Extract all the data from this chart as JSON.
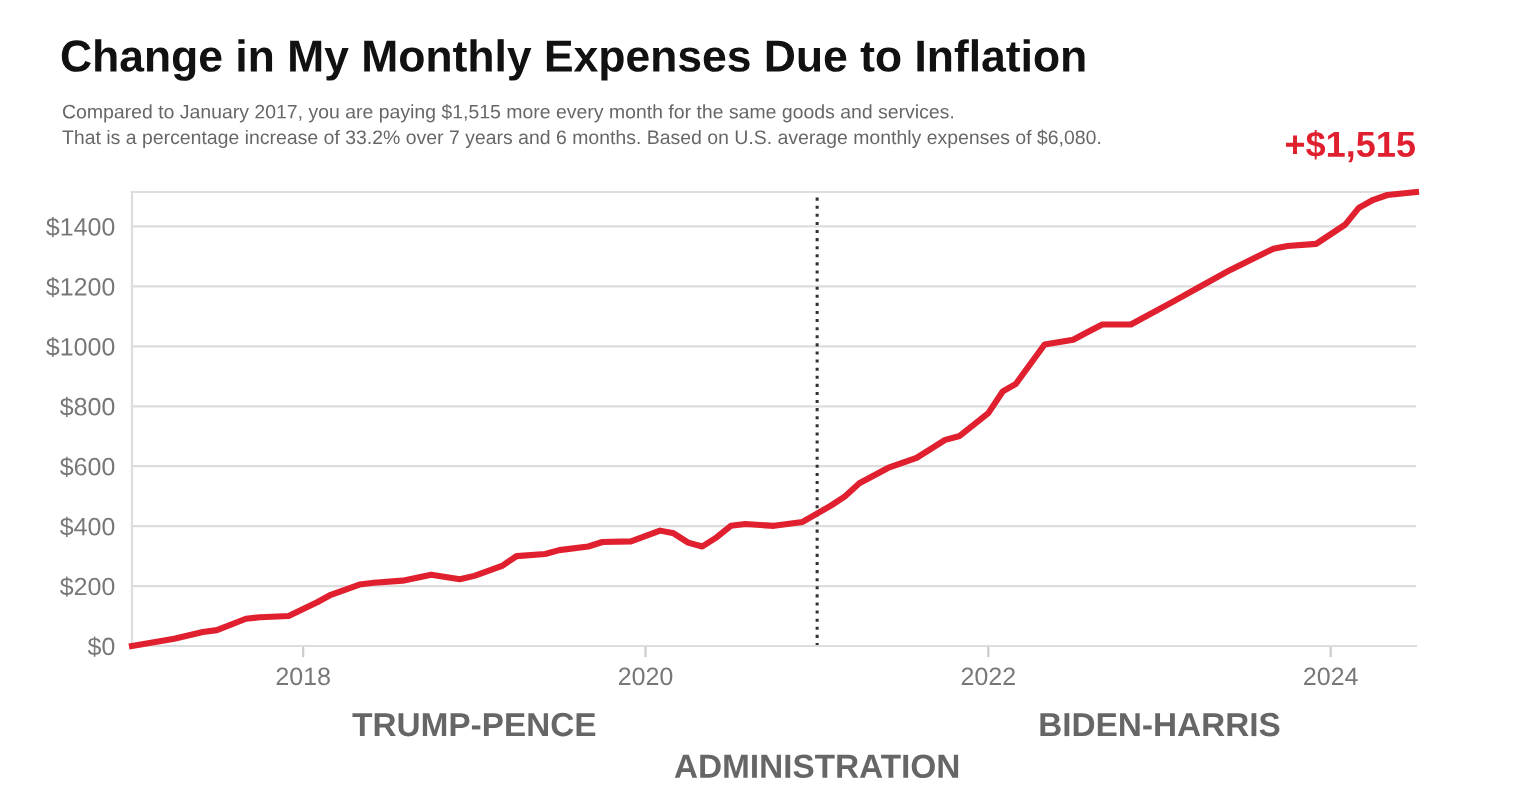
{
  "chart_data": {
    "type": "line",
    "title": "Change in My Monthly Expenses Due to Inflation",
    "subtitle": "Compared to January 2017, you are paying $1,515 more every month for the same goods and services.\nThat is a percentage increase of 33.2% over 7 years and 6 months. Based on U.S. average monthly expenses of $6,080.",
    "x": [
      "2017-01",
      "2017-04",
      "2017-06",
      "2017-07",
      "2017-09",
      "2017-10",
      "2017-12",
      "2018-02",
      "2018-03",
      "2018-05",
      "2018-06",
      "2018-08",
      "2018-10",
      "2018-12",
      "2019-01",
      "2019-03",
      "2019-04",
      "2019-06",
      "2019-07",
      "2019-09",
      "2019-10",
      "2019-12",
      "2020-02",
      "2020-03",
      "2020-04",
      "2020-05",
      "2020-06",
      "2020-07",
      "2020-08",
      "2020-10",
      "2020-12",
      "2021-02",
      "2021-03",
      "2021-04",
      "2021-06",
      "2021-08",
      "2021-10",
      "2021-11",
      "2022-01",
      "2022-02",
      "2022-03",
      "2022-05",
      "2022-07",
      "2022-08",
      "2022-09",
      "2022-11",
      "2023-02",
      "2023-04",
      "2023-06",
      "2023-09",
      "2023-10",
      "2023-12",
      "2024-02",
      "2024-03",
      "2024-04",
      "2024-05",
      "2024-07"
    ],
    "series": [
      {
        "color": "#e0202e",
        "values": [
          0,
          24,
          47,
          53,
          91,
          96,
          100,
          147,
          171,
          205,
          211,
          218,
          238,
          223,
          234,
          267,
          300,
          307,
          320,
          332,
          347,
          349,
          385,
          376,
          345,
          332,
          363,
          401,
          407,
          401,
          414,
          470,
          499,
          543,
          594,
          628,
          688,
          701,
          777,
          850,
          875,
          1006,
          1022,
          1048,
          1073,
          1073,
          1151,
          1202,
          1255,
          1326,
          1335,
          1342,
          1406,
          1462,
          1489,
          1505,
          1515
        ]
      }
    ],
    "xlim": [
      "2017-01",
      "2024-07"
    ],
    "xticks": [
      {
        "value": "2018",
        "label": "2018"
      },
      {
        "value": "2020",
        "label": "2020"
      },
      {
        "value": "2022",
        "label": "2022"
      },
      {
        "value": "2024",
        "label": "2024"
      }
    ],
    "ylim": [
      0,
      1515
    ],
    "yticks": [
      {
        "value": 0,
        "label": "$0"
      },
      {
        "value": 200,
        "label": "$200"
      },
      {
        "value": 400,
        "label": "$400"
      },
      {
        "value": 600,
        "label": "$600"
      },
      {
        "value": 800,
        "label": "$800"
      },
      {
        "value": 1000,
        "label": "$1000"
      },
      {
        "value": 1200,
        "label": "$1200"
      },
      {
        "value": 1400,
        "label": "$1400"
      }
    ],
    "grid": "y",
    "line_style": "solid",
    "ref_lines": [
      {
        "axis": "x",
        "value": "2021-01",
        "color": "#333333",
        "line_style": "dotted"
      }
    ],
    "annotations": [
      {
        "text": "+$1,515",
        "x": "2024-07",
        "y": 1515
      },
      "TRUMP-PENCE",
      "ADMINISTRATION",
      "BIDEN-HARRIS"
    ]
  }
}
